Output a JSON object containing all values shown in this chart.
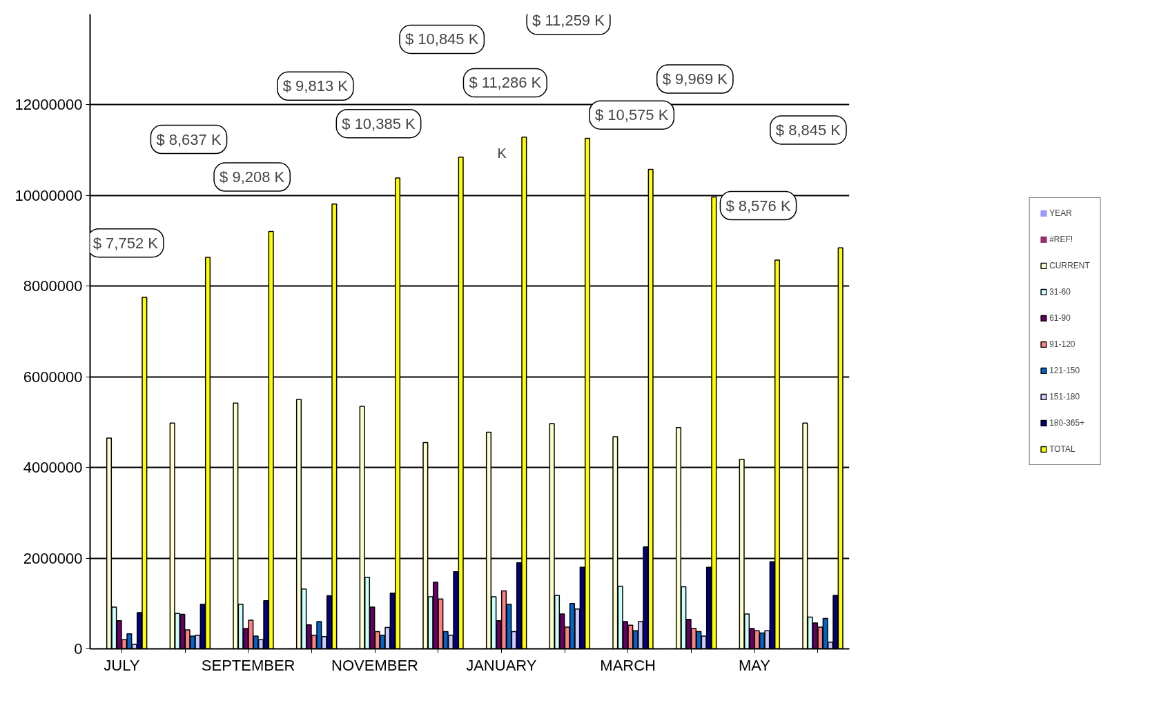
{
  "chart_data": {
    "type": "bar",
    "categories": [
      "JULY",
      null,
      "SEPTEMBER",
      null,
      "NOVEMBER",
      null,
      "JANUARY",
      null,
      "MARCH",
      null,
      "MAY",
      null
    ],
    "ylim": [
      0,
      14000000
    ],
    "yticks": [
      0,
      2000000,
      4000000,
      6000000,
      8000000,
      10000000,
      12000000
    ],
    "grid": "y",
    "legend": "right",
    "series": [
      {
        "name": "YEAR",
        "color": "#9999ff",
        "values": [
          0,
          0,
          0,
          0,
          0,
          0,
          0,
          0,
          0,
          0,
          0,
          0
        ]
      },
      {
        "name": "#REF!",
        "color": "#993366",
        "values": [
          0,
          0,
          0,
          0,
          0,
          0,
          0,
          0,
          0,
          0,
          0,
          0
        ]
      },
      {
        "name": "CURRENT",
        "color": "#ffffcc",
        "values": [
          4650000,
          4980000,
          5420000,
          5500000,
          5350000,
          4550000,
          4780000,
          4970000,
          4680000,
          4880000,
          4180000,
          4980000
        ]
      },
      {
        "name": "31-60",
        "color": "#ccffff",
        "values": [
          920000,
          780000,
          980000,
          1320000,
          1580000,
          1150000,
          1150000,
          1180000,
          1380000,
          1370000,
          770000,
          700000
        ]
      },
      {
        "name": "61-90",
        "color": "#660066",
        "values": [
          620000,
          760000,
          450000,
          530000,
          920000,
          1470000,
          620000,
          770000,
          600000,
          650000,
          450000,
          570000
        ]
      },
      {
        "name": "91-120",
        "color": "#ff8080",
        "values": [
          200000,
          420000,
          630000,
          300000,
          380000,
          1100000,
          1280000,
          480000,
          520000,
          450000,
          400000,
          480000
        ]
      },
      {
        "name": "121-150",
        "color": "#0066cc",
        "values": [
          330000,
          280000,
          280000,
          600000,
          300000,
          380000,
          980000,
          1000000,
          400000,
          380000,
          350000,
          670000
        ]
      },
      {
        "name": "151-180",
        "color": "#ccccff",
        "values": [
          100000,
          300000,
          200000,
          270000,
          470000,
          300000,
          380000,
          880000,
          600000,
          280000,
          400000,
          150000
        ]
      },
      {
        "name": "180-365+",
        "color": "#000080",
        "values": [
          800000,
          980000,
          1060000,
          1170000,
          1230000,
          1700000,
          1900000,
          1800000,
          2250000,
          1800000,
          1920000,
          1180000
        ]
      },
      {
        "name": "TOTAL",
        "color": "#ffff00",
        "values": [
          7752000,
          8637000,
          9208000,
          9813000,
          10385000,
          10845000,
          11286000,
          11259000,
          10575000,
          9969000,
          8576000,
          8845000
        ]
      }
    ],
    "annotations": [
      "$ 7,752 K",
      "$ 8,637 K",
      "$ 9,208 K",
      "$ 9,813 K",
      "$ 10,385 K",
      "$ 10,845 K",
      "$ 11,286 K",
      "$ 11,259 K",
      "$ 10,575 K",
      "$ 9,969 K",
      "$ 8,576 K",
      "$ 8,845 K",
      "K"
    ]
  }
}
